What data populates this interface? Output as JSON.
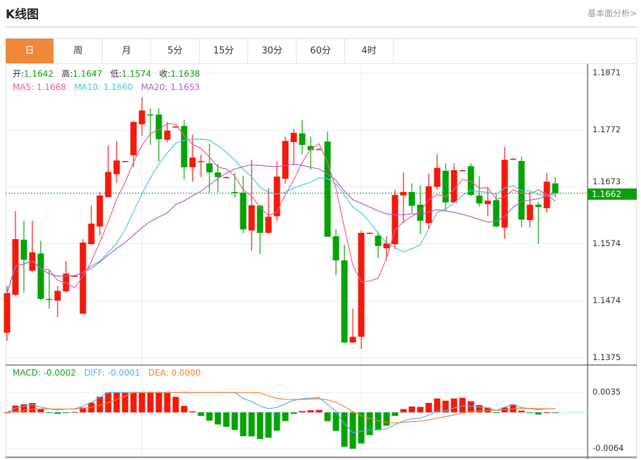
{
  "header": {
    "title": "K线图",
    "fundamental_link": "基本面分析>"
  },
  "tabs": [
    {
      "label": "日",
      "active": true
    },
    {
      "label": "周"
    },
    {
      "label": "月"
    },
    {
      "label": "5分"
    },
    {
      "label": "15分"
    },
    {
      "label": "30分"
    },
    {
      "label": "60分"
    },
    {
      "label": "4时"
    }
  ],
  "ohlc_legend": {
    "open_label": "开:",
    "open": "1.1642",
    "high_label": "高:",
    "high": "1.1647",
    "low_label": "低:",
    "low": "1.1574",
    "close_label": "收:",
    "close": "1.1638"
  },
  "ma_legend": {
    "ma5": "MA5: 1.1668",
    "ma10": "MA10: 1.1660",
    "ma20": "MA20: 1.1653"
  },
  "macd_legend": {
    "macd": "MACD: -0.0002",
    "diff": "DIFF: -0.0001",
    "dea": "DEA: 0.0000"
  },
  "current_price": "1.1662",
  "colors": {
    "up": "#f21a0a",
    "down": "#05a305",
    "ma5": "#ef5b8c",
    "ma10": "#45c9dd",
    "ma20": "#b25ccb",
    "diff": "#5aabef",
    "dea": "#f5802a",
    "accent": "#f0883a"
  },
  "chart_data": {
    "type": "candlestick",
    "price_axis": {
      "ticks": [
        "1.1871",
        "1.1772",
        "1.1673",
        "1.1574",
        "1.1474",
        "1.1375"
      ],
      "range": [
        1.1375,
        1.1871
      ]
    },
    "macd_axis": {
      "ticks": [
        "0.0035",
        "-0.0064"
      ],
      "range": [
        -0.0064,
        0.0035
      ]
    },
    "current_price": 1.1662,
    "candles_ohlc": [
      [
        1.1419,
        1.15,
        1.1405,
        1.1488
      ],
      [
        1.1485,
        1.1631,
        1.1483,
        1.1582
      ],
      [
        1.1581,
        1.1614,
        1.1489,
        1.1546
      ],
      [
        1.1527,
        1.1614,
        1.1524,
        1.1559
      ],
      [
        1.1557,
        1.1579,
        1.1475,
        1.1478
      ],
      [
        1.1478,
        1.1529,
        1.1461,
        1.1477
      ],
      [
        1.1475,
        1.15,
        1.1446,
        1.1492
      ],
      [
        1.1491,
        1.1544,
        1.1489,
        1.1522
      ],
      [
        1.1517,
        1.152,
        1.1516,
        1.1518
      ],
      [
        1.1452,
        1.1582,
        1.1452,
        1.1576
      ],
      [
        1.1573,
        1.1641,
        1.1573,
        1.1609
      ],
      [
        1.1604,
        1.1664,
        1.1589,
        1.1658
      ],
      [
        1.1655,
        1.1745,
        1.1655,
        1.1699
      ],
      [
        1.1695,
        1.1753,
        1.168,
        1.1719
      ],
      [
        1.1717,
        1.1718,
        1.1716,
        1.1718
      ],
      [
        1.1728,
        1.1788,
        1.1707,
        1.1786
      ],
      [
        1.1782,
        1.1829,
        1.1762,
        1.1806
      ],
      [
        1.1799,
        1.181,
        1.1746,
        1.1798
      ],
      [
        1.1799,
        1.181,
        1.1717,
        1.1756
      ],
      [
        1.1755,
        1.1786,
        1.1751,
        1.1771
      ],
      [
        1.1777,
        1.1779,
        1.1776,
        1.1778
      ],
      [
        1.1779,
        1.179,
        1.1686,
        1.1707
      ],
      [
        1.1707,
        1.1764,
        1.1682,
        1.1724
      ],
      [
        1.1717,
        1.1729,
        1.169,
        1.1718
      ],
      [
        1.1714,
        1.1748,
        1.1663,
        1.1698
      ],
      [
        1.1698,
        1.1713,
        1.1664,
        1.169
      ],
      [
        1.1689,
        1.1691,
        1.1688,
        1.169
      ],
      [
        1.1664,
        1.1697,
        1.1654,
        1.1663
      ],
      [
        1.1663,
        1.1692,
        1.1592,
        1.1599
      ],
      [
        1.1597,
        1.172,
        1.1562,
        1.1641
      ],
      [
        1.164,
        1.1642,
        1.1556,
        1.1593
      ],
      [
        1.1593,
        1.1671,
        1.1591,
        1.1621
      ],
      [
        1.1622,
        1.1717,
        1.1614,
        1.1691
      ],
      [
        1.1687,
        1.176,
        1.1679,
        1.1753
      ],
      [
        1.1751,
        1.1774,
        1.1711,
        1.1767
      ],
      [
        1.1766,
        1.1789,
        1.173,
        1.1746
      ],
      [
        1.1744,
        1.176,
        1.1703,
        1.1737
      ],
      [
        1.1738,
        1.174,
        1.1737,
        1.1739
      ],
      [
        1.1752,
        1.1769,
        1.1586,
        1.1586
      ],
      [
        1.1587,
        1.1599,
        1.1519,
        1.1545
      ],
      [
        1.1545,
        1.1572,
        1.1401,
        1.1402
      ],
      [
        1.1402,
        1.1461,
        1.1402,
        1.1412
      ],
      [
        1.1412,
        1.1597,
        1.1391,
        1.1593
      ],
      [
        1.1592,
        1.1594,
        1.1591,
        1.1593
      ],
      [
        1.1588,
        1.1595,
        1.1549,
        1.157
      ],
      [
        1.1566,
        1.1587,
        1.1545,
        1.1575
      ],
      [
        1.1573,
        1.1668,
        1.1565,
        1.1659
      ],
      [
        1.1658,
        1.1698,
        1.161,
        1.1664
      ],
      [
        1.1664,
        1.1679,
        1.1628,
        1.164
      ],
      [
        1.1642,
        1.1675,
        1.1591,
        1.1614
      ],
      [
        1.161,
        1.1696,
        1.1598,
        1.1674
      ],
      [
        1.1673,
        1.173,
        1.1668,
        1.1706
      ],
      [
        1.1701,
        1.1714,
        1.1632,
        1.1646
      ],
      [
        1.1646,
        1.1714,
        1.1646,
        1.1702
      ],
      [
        1.1701,
        1.1703,
        1.17,
        1.1702
      ],
      [
        1.1709,
        1.1714,
        1.1657,
        1.1659
      ],
      [
        1.1658,
        1.1692,
        1.1639,
        1.1644
      ],
      [
        1.1643,
        1.1673,
        1.1622,
        1.1649
      ],
      [
        1.165,
        1.1662,
        1.1602,
        1.1604
      ],
      [
        1.1602,
        1.1742,
        1.1583,
        1.172
      ],
      [
        1.1721,
        1.1723,
        1.172,
        1.1722
      ],
      [
        1.1718,
        1.1725,
        1.1603,
        1.1616
      ],
      [
        1.1615,
        1.1664,
        1.1603,
        1.1642
      ],
      [
        1.1642,
        1.1647,
        1.1574,
        1.1638
      ],
      [
        1.1636,
        1.1697,
        1.1628,
        1.1682
      ],
      [
        1.1679,
        1.169,
        1.1655,
        1.1662
      ]
    ]
  }
}
